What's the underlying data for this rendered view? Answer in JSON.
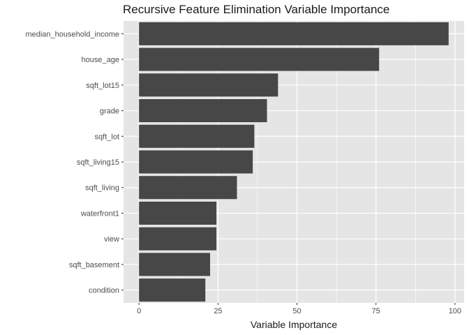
{
  "chart_data": {
    "type": "bar",
    "orientation": "horizontal",
    "title": "Recursive Feature Elimination Variable Importance",
    "xlabel": "Variable Importance",
    "ylabel": "",
    "categories": [
      "median_household_income",
      "house_age",
      "sqft_lot15",
      "grade",
      "sqft_lot",
      "sqft_living15",
      "sqft_living",
      "waterfront1",
      "view",
      "sqft_basement",
      "condition"
    ],
    "values": [
      98,
      76,
      44,
      40.5,
      36.5,
      36,
      31,
      24.5,
      24.5,
      22.5,
      21
    ],
    "xlim": [
      -4.9,
      102.9
    ],
    "xticks": [
      0,
      25,
      50,
      75,
      100
    ],
    "xtick_labels": [
      "0",
      "25",
      "50",
      "75",
      "100"
    ],
    "grid": true,
    "colors": {
      "bar": "#474747",
      "panel": "#e5e5e5",
      "grid": "#ffffff"
    }
  }
}
